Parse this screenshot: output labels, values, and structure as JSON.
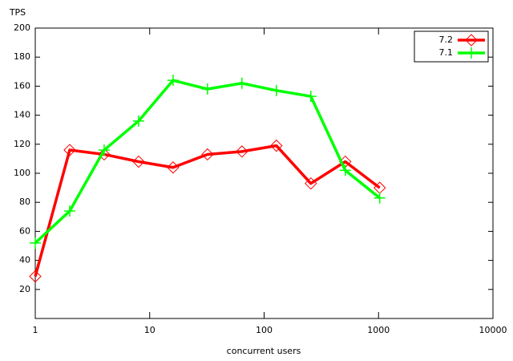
{
  "chart_data": {
    "type": "line",
    "x_label": "concurrent users",
    "y_label": "TPS",
    "x": [
      1,
      2,
      4,
      8,
      16,
      32,
      64,
      128,
      256,
      512,
      1024
    ],
    "series": [
      {
        "name": "7.2",
        "color": "#ff0000",
        "marker": "diamond",
        "values": [
          29,
          116,
          113,
          108,
          104,
          113,
          115,
          119,
          93,
          108,
          90
        ]
      },
      {
        "name": "7.1",
        "color": "#00ff00",
        "marker": "plus",
        "values": [
          52,
          74,
          116,
          136,
          164,
          158,
          162,
          157,
          153,
          102,
          83
        ]
      }
    ],
    "xscale": "log",
    "xlim": [
      1,
      10000
    ],
    "xticks": [
      1,
      10,
      100,
      1000,
      10000
    ],
    "ylim": [
      0,
      200
    ],
    "yticks": [
      20,
      40,
      60,
      80,
      100,
      120,
      140,
      160,
      180,
      200
    ],
    "grid": false,
    "legend": "top-right"
  }
}
